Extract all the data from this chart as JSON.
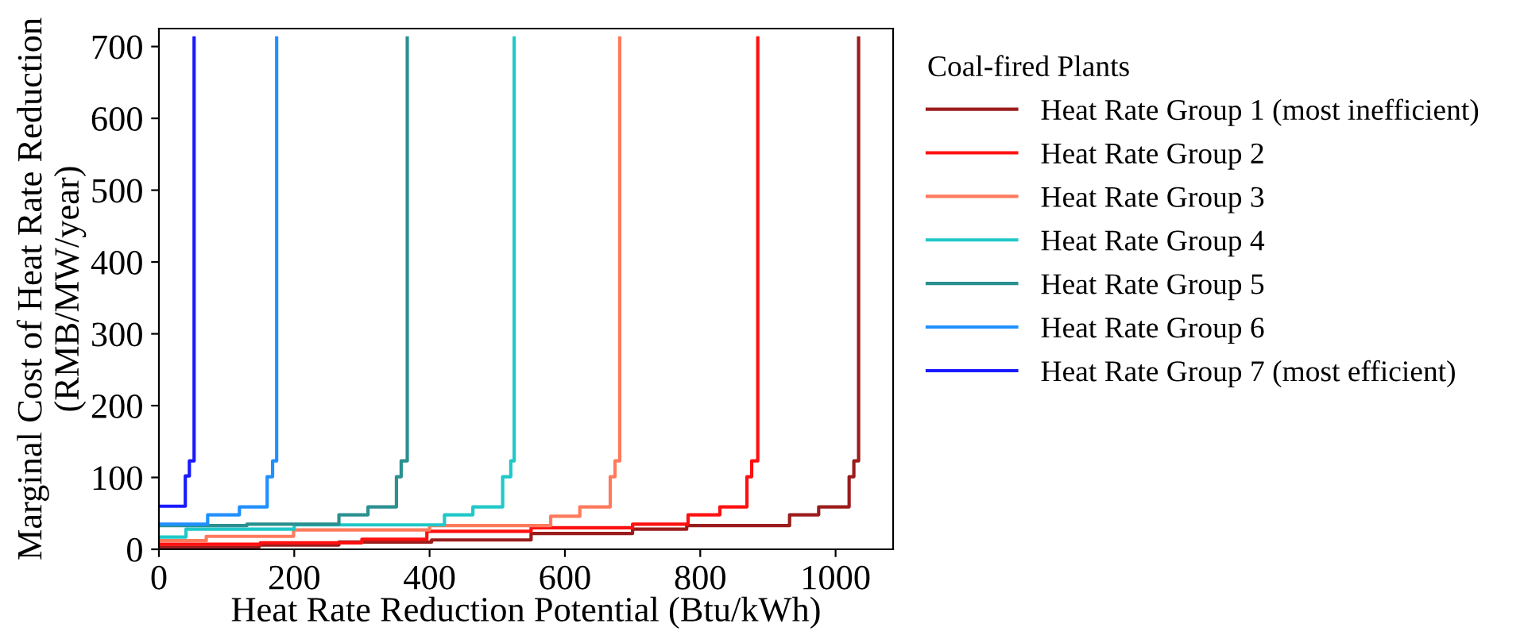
{
  "chart_data": {
    "type": "step",
    "xlabel": "Heat Rate Reduction Potential (Btu/kWh)",
    "ylabel": "Marginal Cost of Heat Rate Reduction\n(RMB/MW/year)",
    "legend_title": "Coal-fired Plants",
    "legend": "right",
    "xlim": [
      0,
      1085
    ],
    "ylim": [
      0,
      725
    ],
    "xticks": [
      0,
      200,
      400,
      600,
      800,
      1000
    ],
    "yticks": [
      0,
      100,
      200,
      300,
      400,
      500,
      600,
      700
    ],
    "grid": false,
    "series": [
      {
        "name": "Heat Rate Group 1 (most inefficient)",
        "color": "#9b1c1c",
        "x": [
          0,
          148,
          266,
          403,
          550,
          700,
          780,
          932,
          975,
          1020,
          1027,
          1034,
          1034
        ],
        "values": [
          3,
          6,
          10,
          13,
          22,
          28,
          33,
          48,
          59,
          101,
          123,
          712,
          712
        ]
      },
      {
        "name": "Heat Rate Group 2",
        "color": "#ff1010",
        "x": [
          0,
          150,
          300,
          396,
          550,
          700,
          782,
          829,
          869,
          876,
          885,
          885
        ],
        "values": [
          7,
          9,
          14,
          25,
          30,
          35,
          48,
          59,
          101,
          123,
          712,
          712
        ]
      },
      {
        "name": "Heat Rate Group 3",
        "color": "#ff7a5c",
        "x": [
          0,
          70,
          199,
          400,
          579,
          622,
          667,
          674,
          681,
          681
        ],
        "values": [
          12,
          18,
          27,
          33,
          46,
          59,
          101,
          123,
          712,
          712
        ]
      },
      {
        "name": "Heat Rate Group 4",
        "color": "#20c8c8",
        "x": [
          0,
          40,
          200,
          422,
          464,
          508,
          520,
          525,
          525
        ],
        "values": [
          17,
          28,
          34,
          48,
          59,
          101,
          123,
          712,
          712
        ]
      },
      {
        "name": "Heat Rate Group 5",
        "color": "#2a9090",
        "x": [
          0,
          130,
          266,
          309,
          351,
          358,
          367,
          367
        ],
        "values": [
          33,
          35,
          48,
          59,
          101,
          123,
          712,
          712
        ]
      },
      {
        "name": "Heat Rate Group 6",
        "color": "#2090ff",
        "x": [
          0,
          72,
          119,
          160,
          168,
          174,
          174
        ],
        "values": [
          35,
          48,
          59,
          101,
          123,
          712,
          712
        ]
      },
      {
        "name": "Heat Rate Group 7 (most efficient)",
        "color": "#1a1aff",
        "x": [
          0,
          39,
          45,
          50,
          52,
          52
        ],
        "values": [
          60,
          102,
          123,
          123,
          712,
          712
        ]
      }
    ]
  }
}
